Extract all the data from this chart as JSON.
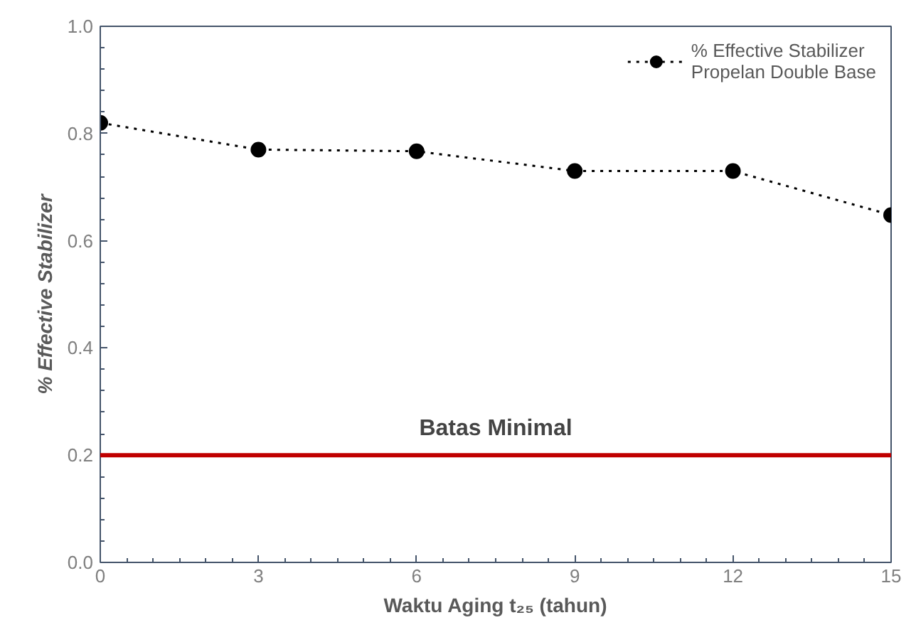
{
  "chart_data": {
    "type": "line",
    "xlabel": "Waktu Aging t₂₅ (tahun)",
    "ylabel": "% Effective Stabilizer",
    "x": [
      0,
      3,
      6,
      9,
      12,
      15
    ],
    "series": [
      {
        "name": "% Effective Stabilizer Propelan Double Base",
        "color": "#000000",
        "values": [
          0.82,
          0.77,
          0.767,
          0.73,
          0.73,
          0.648
        ]
      }
    ],
    "xlim": [
      0,
      15
    ],
    "xticks": [
      0,
      3,
      6,
      9,
      12,
      15
    ],
    "ylim": [
      0,
      1.0
    ],
    "yticks": [
      {
        "value": 0,
        "label": "0.0"
      },
      {
        "value": 0.2,
        "label": "0.2"
      },
      {
        "value": 0.4,
        "label": "0.4"
      },
      {
        "value": 0.6,
        "label": "0.6"
      },
      {
        "value": 0.8,
        "label": "0.8"
      },
      {
        "value": 1.0,
        "label": "1.0"
      }
    ],
    "ref_lines": [
      {
        "axis": "y",
        "value": 0.2,
        "label": "Batas Minimal",
        "color": "#c00000"
      }
    ],
    "grid": false,
    "legend": "top right",
    "marker": "circle",
    "line_style": "dotted"
  }
}
